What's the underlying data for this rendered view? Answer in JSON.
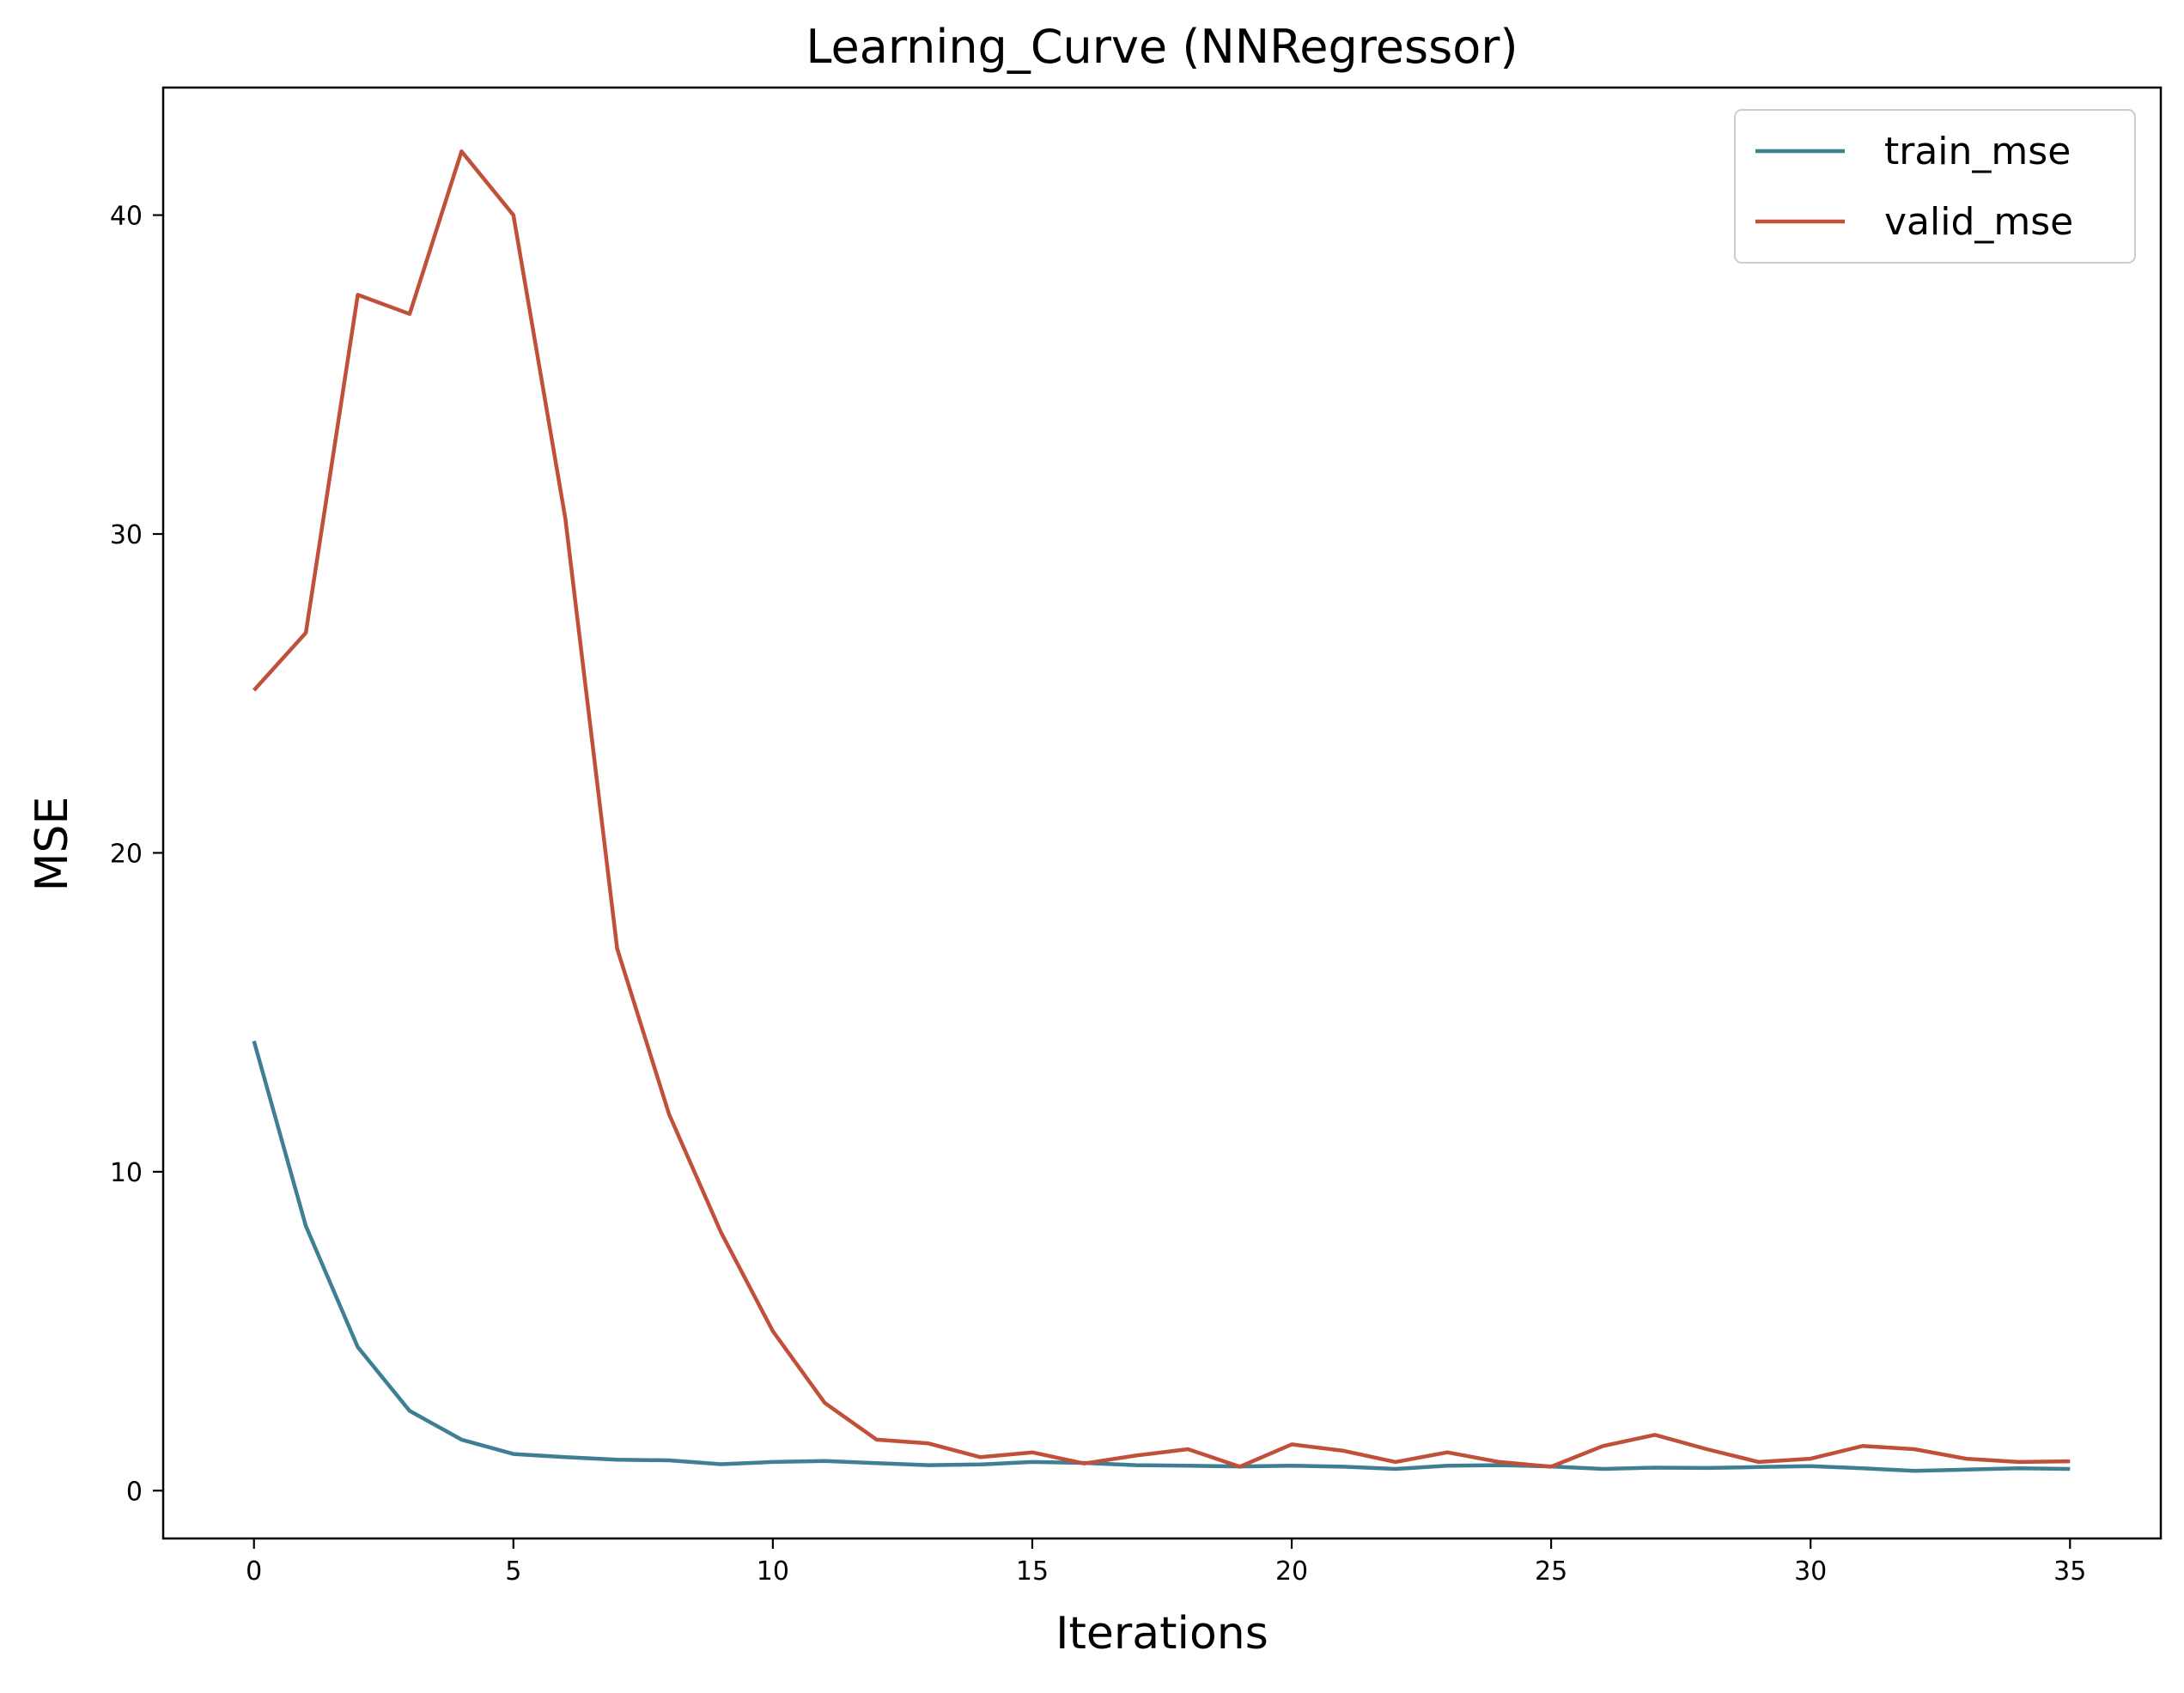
{
  "chart_data": {
    "type": "line",
    "title": "Learning_Curve (NNRegressor)",
    "xlabel": "Iterations",
    "ylabel": "MSE",
    "xlim": [
      -1.75,
      36.75
    ],
    "ylim": [
      -1.5,
      44.0
    ],
    "xticks": [
      0,
      5,
      10,
      15,
      20,
      25,
      30,
      35
    ],
    "xtick_labels": [
      "0",
      "5",
      "10",
      "15",
      "20",
      "25",
      "30",
      "35"
    ],
    "yticks": [
      0,
      10,
      20,
      30,
      40
    ],
    "ytick_labels": [
      "0",
      "10",
      "20",
      "30",
      "40"
    ],
    "grid": false,
    "legend_position": "top-right",
    "x": [
      0,
      1,
      2,
      3,
      4,
      5,
      6,
      7,
      8,
      9,
      10,
      11,
      12,
      13,
      14,
      15,
      16,
      17,
      18,
      19,
      20,
      21,
      22,
      23,
      24,
      25,
      26,
      27,
      28,
      29,
      30,
      31,
      32,
      33,
      34,
      35
    ],
    "series": [
      {
        "name": "train_mse",
        "color": "#3f7f93",
        "values": [
          14.1,
          8.3,
          4.5,
          2.5,
          1.6,
          1.15,
          1.05,
          0.97,
          0.95,
          0.83,
          0.9,
          0.93,
          0.86,
          0.8,
          0.82,
          0.9,
          0.87,
          0.8,
          0.78,
          0.76,
          0.78,
          0.75,
          0.68,
          0.78,
          0.8,
          0.76,
          0.68,
          0.72,
          0.71,
          0.74,
          0.77,
          0.7,
          0.62,
          0.66,
          0.7,
          0.68
        ]
      },
      {
        "name": "valid_mse",
        "color": "#c0503a",
        "values": [
          25.1,
          26.9,
          37.5,
          36.9,
          42.0,
          40.0,
          30.5,
          17.0,
          11.8,
          8.1,
          5.0,
          2.75,
          1.6,
          1.48,
          1.05,
          1.2,
          0.85,
          1.1,
          1.3,
          0.75,
          1.45,
          1.25,
          0.9,
          1.2,
          0.9,
          0.75,
          1.4,
          1.75,
          1.3,
          0.9,
          1.0,
          1.4,
          1.3,
          1.0,
          0.9,
          0.92
        ]
      }
    ]
  }
}
